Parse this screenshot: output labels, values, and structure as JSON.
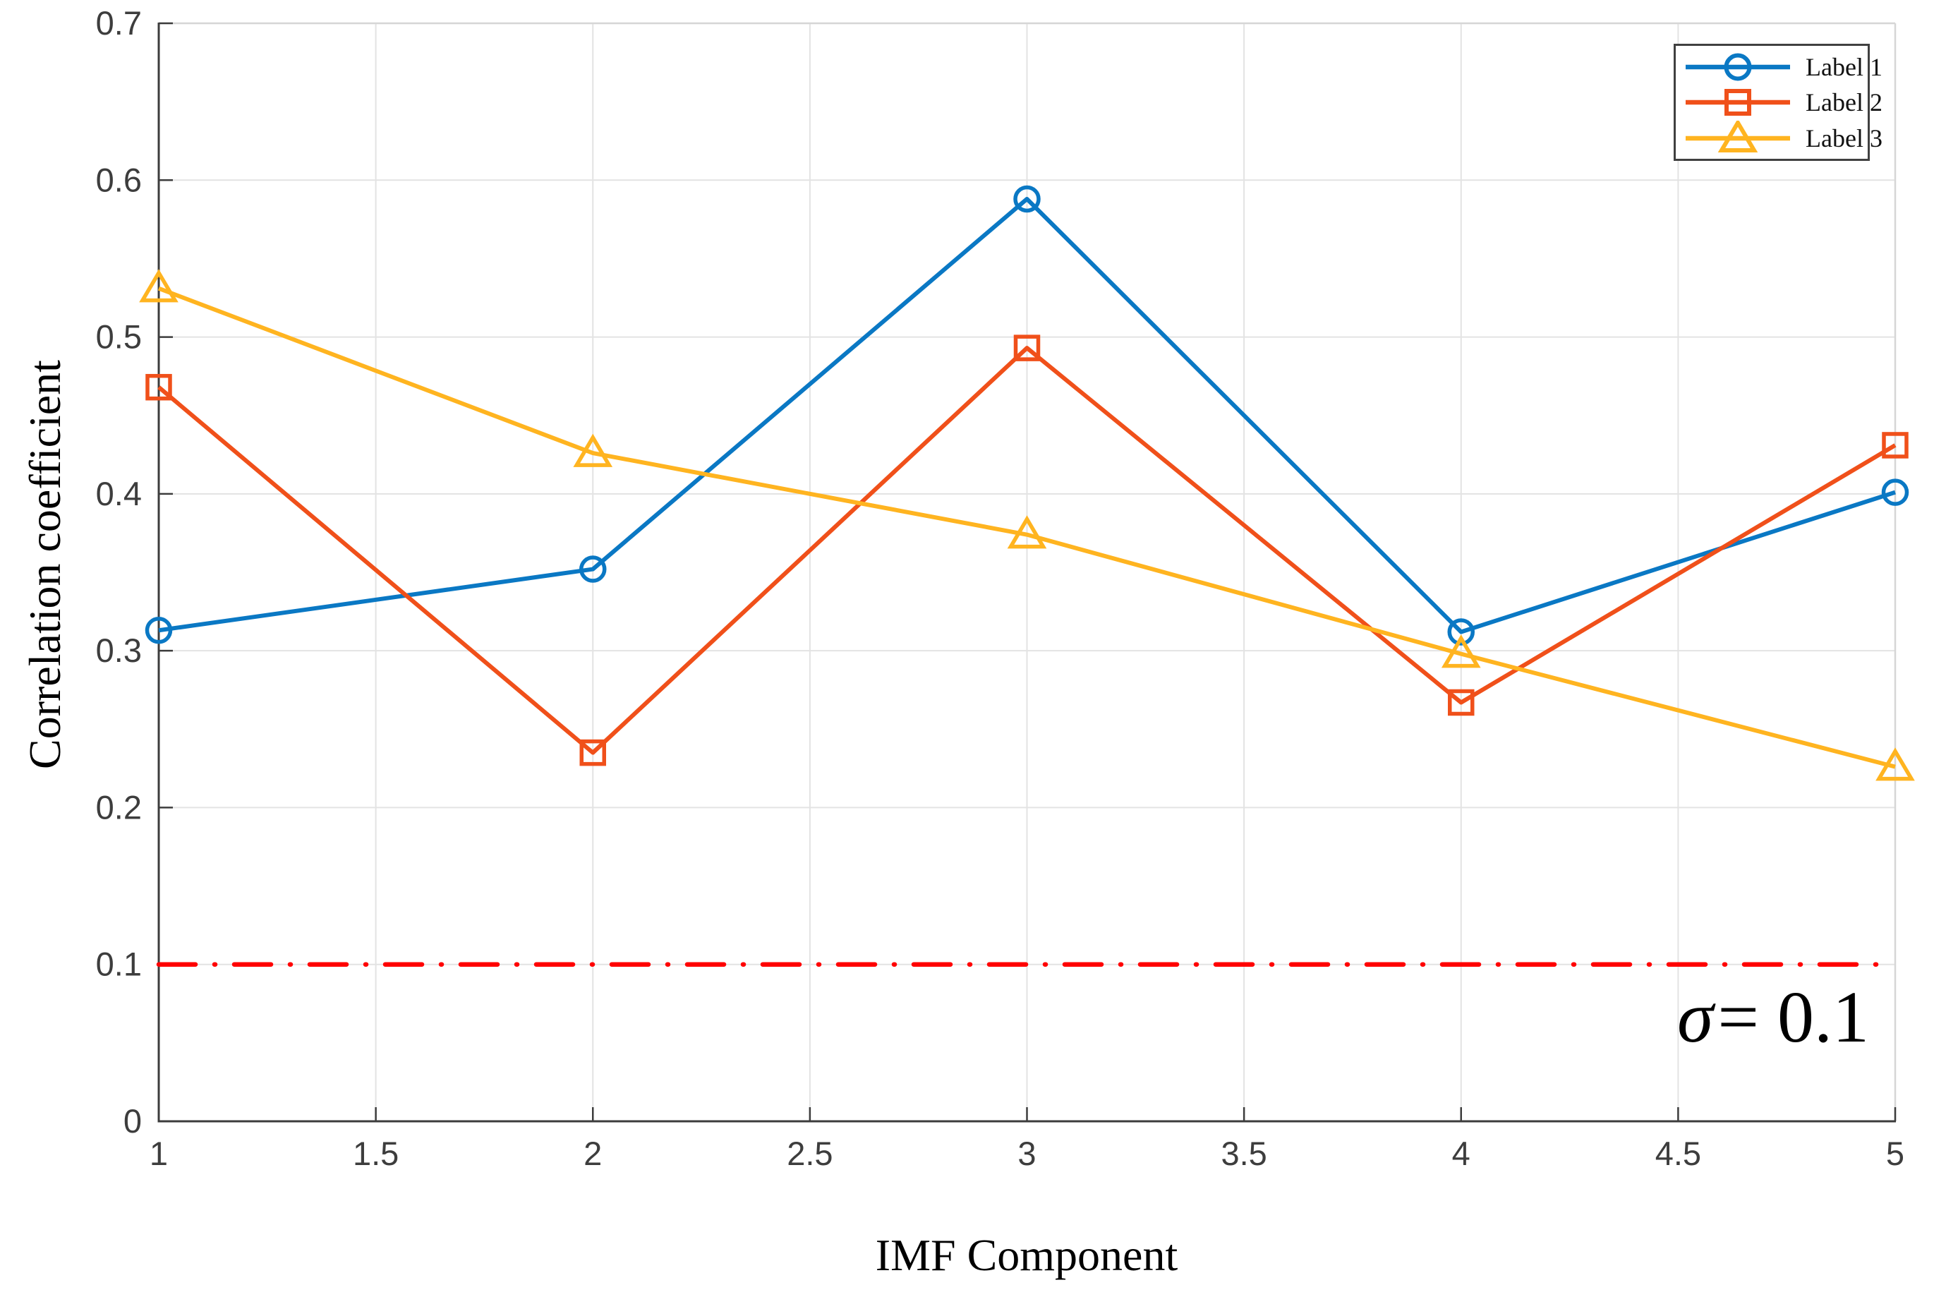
{
  "chart_data": {
    "type": "line",
    "title": "",
    "xlabel": "IMF Component",
    "ylabel": "Correlation coefficient",
    "x": [
      1,
      2,
      3,
      4,
      5
    ],
    "xlim": [
      1,
      5
    ],
    "ylim": [
      0,
      0.7
    ],
    "xticks": [
      "1",
      "1.5",
      "2",
      "2.5",
      "3",
      "3.5",
      "4",
      "4.5",
      "5"
    ],
    "yticks": [
      "0",
      "0.1",
      "0.2",
      "0.3",
      "0.4",
      "0.5",
      "0.6",
      "0.7"
    ],
    "grid": true,
    "legend_position": "top-right",
    "series": [
      {
        "name": "Label 1",
        "marker": "circle",
        "color": "#0A78C4",
        "values": [
          0.313,
          0.352,
          0.588,
          0.312,
          0.401
        ]
      },
      {
        "name": "Label 2",
        "marker": "square",
        "color": "#F0501A",
        "values": [
          0.468,
          0.235,
          0.493,
          0.267,
          0.431
        ]
      },
      {
        "name": "Label 3",
        "marker": "triangle",
        "color": "#FFB420",
        "values": [
          0.531,
          0.426,
          0.374,
          0.298,
          0.226
        ]
      }
    ],
    "threshold_line": {
      "y": 0.1,
      "color": "#FF0000",
      "style": "dash-dot"
    },
    "annotation": {
      "symbol": "σ",
      "rest": "= 0.1"
    }
  }
}
